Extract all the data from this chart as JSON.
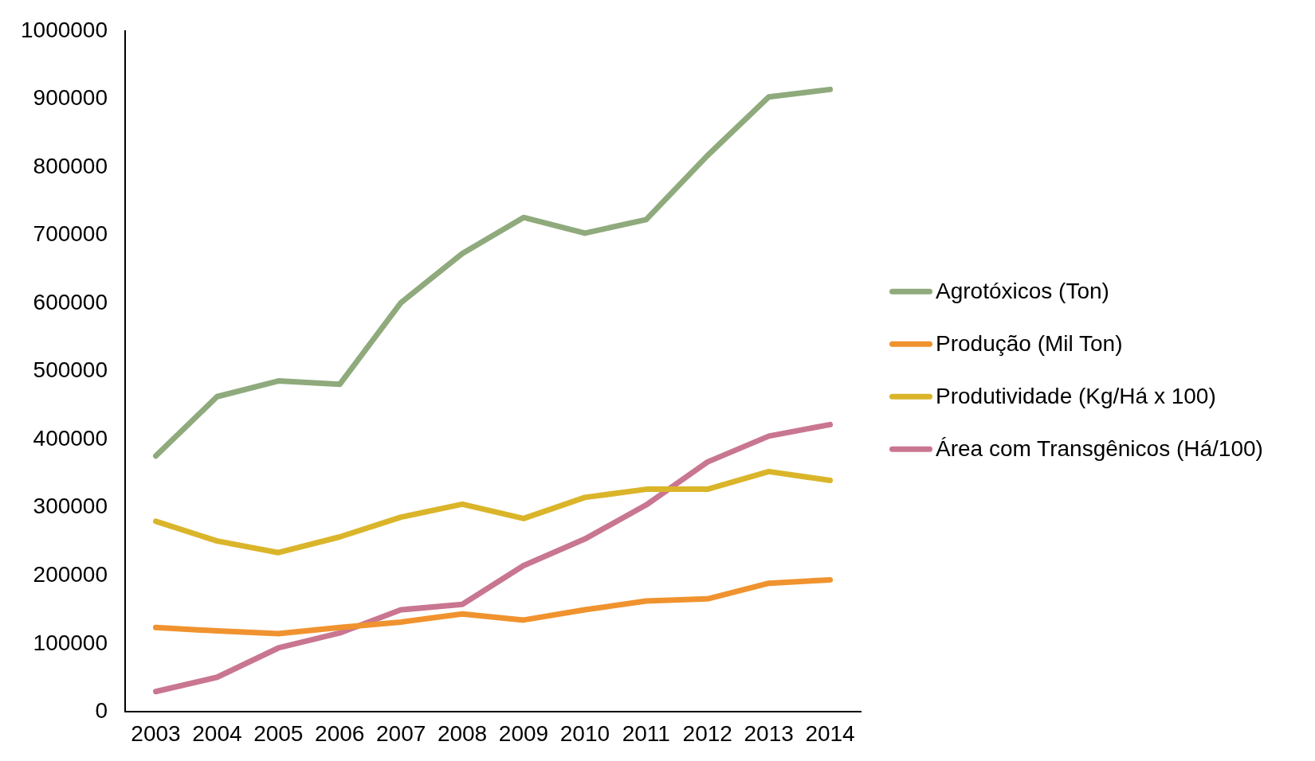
{
  "chart_data": {
    "type": "line",
    "categories": [
      "2003",
      "2004",
      "2005",
      "2006",
      "2007",
      "2008",
      "2009",
      "2010",
      "2011",
      "2012",
      "2013",
      "2014"
    ],
    "series": [
      {
        "name": "Agrotóxicos (Ton)",
        "color": "#8faa7c",
        "values": [
          376000,
          463000,
          486000,
          481000,
          601000,
          673000,
          726000,
          703000,
          723000,
          817000,
          903000,
          914000
        ]
      },
      {
        "name": "Produção (Mil Ton)",
        "color": "#f0932f",
        "values": [
          124000,
          119000,
          115000,
          124000,
          132000,
          144000,
          135000,
          150000,
          163000,
          166000,
          189000,
          194000
        ]
      },
      {
        "name": "Produtividade (Kg/Há x 100)",
        "color": "#dab52a",
        "values": [
          280000,
          251000,
          234000,
          257000,
          286000,
          305000,
          284000,
          315000,
          327000,
          327000,
          353000,
          340000
        ]
      },
      {
        "name": "Área com Transgênicos (Há/100)",
        "color": "#c97690",
        "values": [
          30000,
          51000,
          94000,
          116000,
          150000,
          158000,
          215000,
          254000,
          304000,
          367000,
          405000,
          422000
        ]
      }
    ],
    "ylim": [
      0,
      1000000
    ],
    "yticks": [
      0,
      100000,
      200000,
      300000,
      400000,
      500000,
      600000,
      700000,
      800000,
      900000,
      1000000
    ],
    "grid": false,
    "legend": "right",
    "marker": "none",
    "line_style": "solid"
  }
}
